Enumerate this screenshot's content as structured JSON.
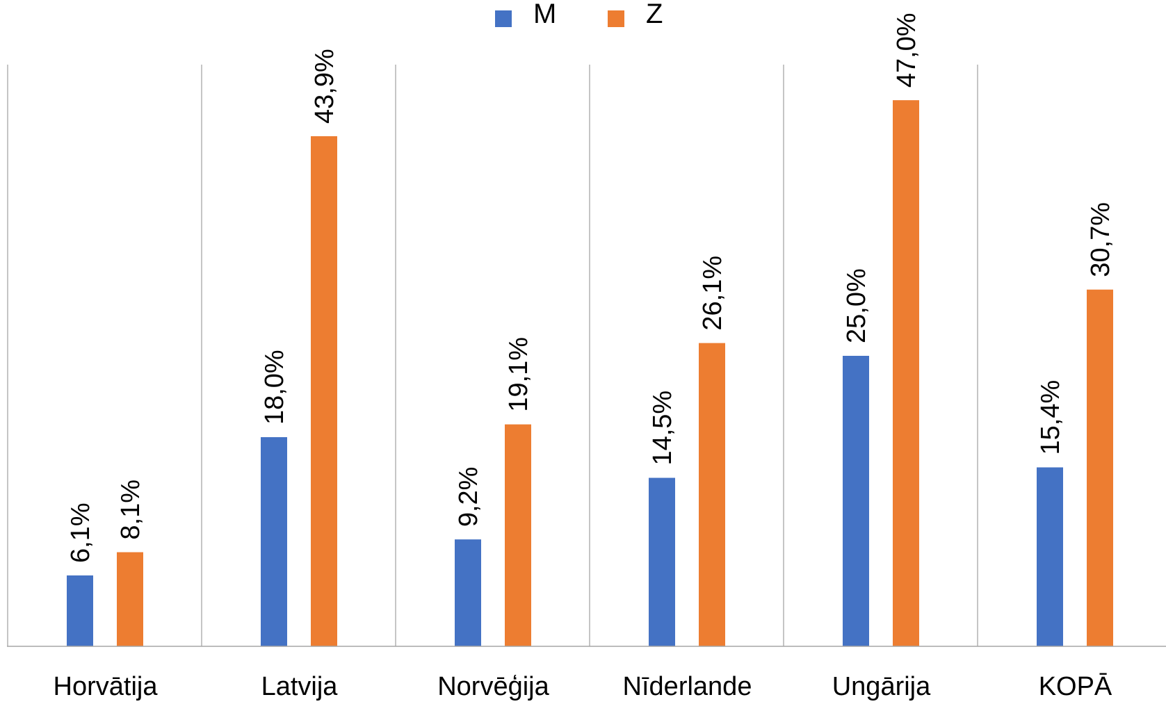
{
  "chart_data": {
    "type": "bar",
    "categories": [
      "Horvātija",
      "Latvija",
      "Norvēģija",
      "Nīderlande",
      "Ungārija",
      "KOPĀ"
    ],
    "series": [
      {
        "name": "M",
        "color": "#4472c4",
        "values": [
          6.1,
          18.0,
          9.2,
          14.5,
          25.0,
          15.4
        ],
        "labels": [
          "6,1%",
          "18,0%",
          "9,2%",
          "14,5%",
          "25,0%",
          "15,4%"
        ]
      },
      {
        "name": "Z",
        "color": "#ed7d31",
        "values": [
          8.1,
          43.9,
          19.1,
          26.1,
          47.0,
          30.7
        ],
        "labels": [
          "8,1%",
          "43,9%",
          "19,1%",
          "26,1%",
          "47,0%",
          "30,7%"
        ]
      }
    ],
    "title": "",
    "xlabel": "",
    "ylabel": "",
    "ylim": [
      0,
      50
    ],
    "grid": "vertical separators between categories",
    "legend": "top-center",
    "data_label_orientation": "vertical"
  }
}
